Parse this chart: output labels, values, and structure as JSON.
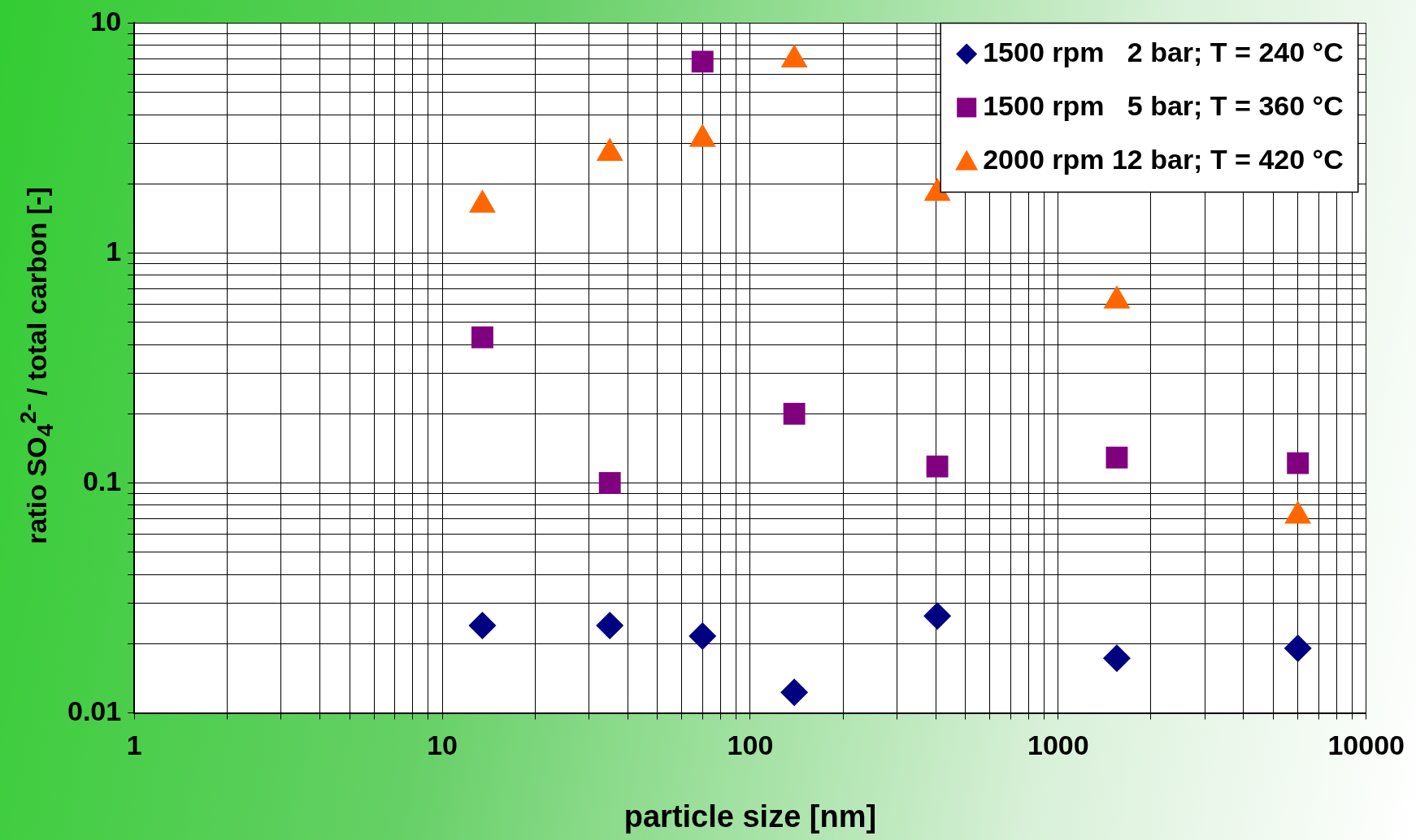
{
  "chart_data": {
    "type": "scatter",
    "xlabel": "particle size [nm]",
    "ylabel": "ratio SO$_{4}$$^{2-}$ / total carbon [-]",
    "log": "xy",
    "grid": true,
    "legend": "top right",
    "xlim": [
      1,
      10000
    ],
    "ylim": [
      0.01,
      10
    ],
    "xticks": [
      1,
      {
        "value": 2,
        "label": null
      },
      {
        "value": 3,
        "label": null
      },
      {
        "value": 4,
        "label": null
      },
      {
        "value": 5,
        "label": null
      },
      {
        "value": 6,
        "label": null
      },
      {
        "value": 7,
        "label": null
      },
      {
        "value": 8,
        "label": null
      },
      {
        "value": 9,
        "label": null
      },
      10,
      {
        "value": 20,
        "label": null
      },
      {
        "value": 30,
        "label": null
      },
      {
        "value": 40,
        "label": null
      },
      {
        "value": 50,
        "label": null
      },
      {
        "value": 60,
        "label": null
      },
      {
        "value": 70,
        "label": null
      },
      {
        "value": 80,
        "label": null
      },
      {
        "value": 90,
        "label": null
      },
      100,
      {
        "value": 200,
        "label": null
      },
      {
        "value": 300,
        "label": null
      },
      {
        "value": 400,
        "label": null
      },
      {
        "value": 500,
        "label": null
      },
      {
        "value": 600,
        "label": null
      },
      {
        "value": 700,
        "label": null
      },
      {
        "value": 800,
        "label": null
      },
      {
        "value": 900,
        "label": null
      },
      1000,
      {
        "value": 2000,
        "label": null
      },
      {
        "value": 3000,
        "label": null
      },
      {
        "value": 4000,
        "label": null
      },
      {
        "value": 5000,
        "label": null
      },
      {
        "value": 6000,
        "label": null
      },
      {
        "value": 7000,
        "label": null
      },
      {
        "value": 8000,
        "label": null
      },
      {
        "value": 9000,
        "label": null
      },
      10000
    ],
    "yticks": [
      0.01,
      {
        "value": 0.02,
        "label": null
      },
      {
        "value": 0.03,
        "label": null
      },
      {
        "value": 0.04,
        "label": null
      },
      {
        "value": 0.05,
        "label": null
      },
      {
        "value": 0.06,
        "label": null
      },
      {
        "value": 0.07,
        "label": null
      },
      {
        "value": 0.08,
        "label": null
      },
      {
        "value": 0.09,
        "label": null
      },
      0.1,
      {
        "value": 0.2,
        "label": null
      },
      {
        "value": 0.3,
        "label": null
      },
      {
        "value": 0.4,
        "label": null
      },
      {
        "value": 0.5,
        "label": null
      },
      {
        "value": 0.6,
        "label": null
      },
      {
        "value": 0.7,
        "label": null
      },
      {
        "value": 0.8,
        "label": null
      },
      {
        "value": 0.9,
        "label": null
      },
      1,
      {
        "value": 2,
        "label": null
      },
      {
        "value": 3,
        "label": null
      },
      {
        "value": 4,
        "label": null
      },
      {
        "value": 5,
        "label": null
      },
      {
        "value": 6,
        "label": null
      },
      {
        "value": 7,
        "label": null
      },
      {
        "value": 8,
        "label": null
      },
      {
        "value": 9,
        "label": null
      },
      10
    ],
    "x": [
      13.5,
      35,
      70,
      139,
      405,
      1550,
      6000
    ],
    "series": [
      {
        "name": "1500 rpm   2 bar; T = 240 °C",
        "color": "#000080",
        "marker": "diamond",
        "values": [
          0.024,
          0.024,
          0.0216,
          0.0123,
          0.0264,
          0.0173,
          0.0191
        ]
      },
      {
        "name": "1500 rpm   5 bar; T = 360 °C",
        "color": "#800080",
        "marker": "square",
        "values": [
          0.43,
          0.1,
          6.8,
          0.2,
          0.118,
          0.129,
          0.122
        ]
      },
      {
        "name": "2000 rpm 12 bar; T = 420 °C",
        "color": "#ff6600",
        "marker": "triangle",
        "values": [
          1.62,
          2.72,
          3.13,
          6.93,
          1.82,
          0.62,
          0.072
        ]
      }
    ]
  }
}
